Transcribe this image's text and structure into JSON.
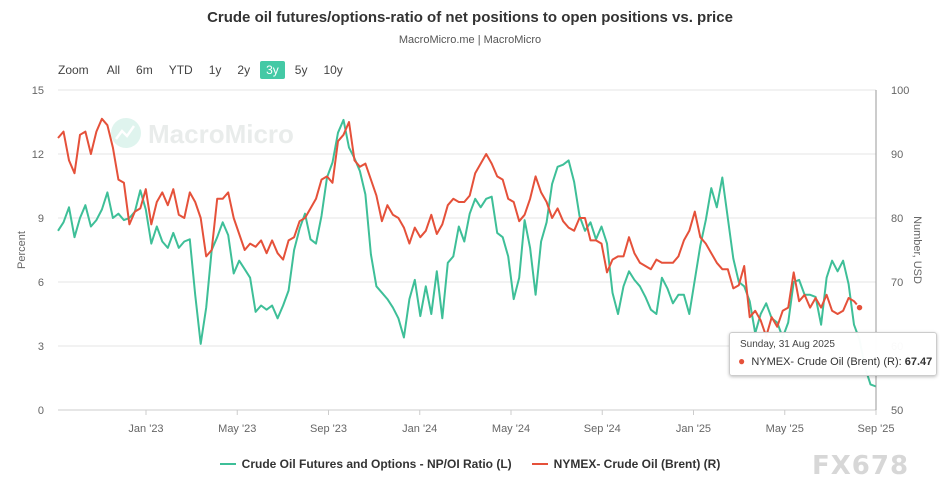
{
  "title": "Crude oil futures/options-ratio of net positions to open positions vs. price",
  "subtitle": "MacroMicro.me | MacroMicro",
  "range_selector": {
    "zoom_label": "Zoom",
    "options": [
      "All",
      "6m",
      "YTD",
      "1y",
      "2y",
      "3y",
      "5y",
      "10y"
    ],
    "active": "3y"
  },
  "watermark": "MacroMicro",
  "corner_watermark": "FX678",
  "tooltip": {
    "date": "Sunday, 31 Aug 2025",
    "series": "NYMEX- Crude Oil (Brent) (R):",
    "value": "67.47"
  },
  "colors": {
    "ratio": "#3ebf98",
    "brent": "#e5513a",
    "active_button": "#44c9a5"
  },
  "chart_data": {
    "type": "line",
    "x_start": "2022-09",
    "x_end": "2025-09",
    "x_ticks": [
      "Jan '23",
      "May '23",
      "Sep '23",
      "Jan '24",
      "May '24",
      "Sep '24",
      "Jan '25",
      "May '25",
      "Sep '25"
    ],
    "y_left": {
      "label": "Percent",
      "min": 0,
      "max": 15,
      "ticks": [
        0,
        3,
        6,
        9,
        12,
        15
      ]
    },
    "y_right": {
      "label": "Number, USD",
      "min": 50,
      "max": 100,
      "ticks": [
        50,
        60,
        70,
        80,
        90,
        100
      ]
    },
    "grid": true,
    "legend_position": "bottom",
    "series": [
      {
        "name": "Crude Oil Futures and Options - NP/OI Ratio (L)",
        "axis": "left",
        "values": [
          8.4,
          8.8,
          9.5,
          8.1,
          9.0,
          9.6,
          8.6,
          8.9,
          9.4,
          10.2,
          9.0,
          9.2,
          8.9,
          9.0,
          9.3,
          10.3,
          9.4,
          7.8,
          8.6,
          7.9,
          7.6,
          8.3,
          7.6,
          7.9,
          8.0,
          5.4,
          3.1,
          4.8,
          7.5,
          8.1,
          8.8,
          8.2,
          6.4,
          7.0,
          6.6,
          6.2,
          4.6,
          4.9,
          4.7,
          4.9,
          4.3,
          4.9,
          5.6,
          7.5,
          8.5,
          9.2,
          8.0,
          7.8,
          9.1,
          10.9,
          11.6,
          13.0,
          13.6,
          12.3,
          11.8,
          11.2,
          10.1,
          7.3,
          5.8,
          5.5,
          5.2,
          4.8,
          4.3,
          3.4,
          5.2,
          6.1,
          4.4,
          5.8,
          4.5,
          6.5,
          4.3,
          6.9,
          7.2,
          8.6,
          7.9,
          9.2,
          9.9,
          9.5,
          9.9,
          10.0,
          8.3,
          8.1,
          7.2,
          5.2,
          6.2,
          8.9,
          7.6,
          5.4,
          7.9,
          8.8,
          10.6,
          11.4,
          11.5,
          11.7,
          10.7,
          9.1,
          8.4,
          8.8,
          8.0,
          8.6,
          7.8,
          5.5,
          4.5,
          5.8,
          6.5,
          6.1,
          5.8,
          5.3,
          4.7,
          4.5,
          6.2,
          5.7,
          5.0,
          5.4,
          5.4,
          4.5,
          6.1,
          7.7,
          8.9,
          10.4,
          9.5,
          10.9,
          9.0,
          7.1,
          6.0,
          5.8,
          5.1,
          3.6,
          4.5,
          5.0,
          4.3,
          4.1,
          3.4,
          4.1,
          6.0,
          6.1,
          5.4,
          5.4,
          5.3,
          4.0,
          6.2,
          7.0,
          6.5,
          7.0,
          5.9,
          4.0,
          3.3,
          2.0,
          1.2,
          1.1
        ]
      },
      {
        "name": "NYMEX- Crude Oil (Brent) (R)",
        "axis": "right",
        "values": [
          92.5,
          93.5,
          89.0,
          87.0,
          93.0,
          93.5,
          90.0,
          93.5,
          95.5,
          94.5,
          91.0,
          86.0,
          85.5,
          79.0,
          81.0,
          81.5,
          84.5,
          79.0,
          82.5,
          84.0,
          82.0,
          84.5,
          80.5,
          80.0,
          84.0,
          82.5,
          80.0,
          74.0,
          75.0,
          83.0,
          83.0,
          84.0,
          80.0,
          77.5,
          75.0,
          76.0,
          75.5,
          76.5,
          74.5,
          76.5,
          74.5,
          73.5,
          76.5,
          77.0,
          79.5,
          80.0,
          81.5,
          83.0,
          86.0,
          86.5,
          85.5,
          92.0,
          93.0,
          95.0,
          89.0,
          88.0,
          88.5,
          86.0,
          83.5,
          79.5,
          82.0,
          80.5,
          80.0,
          78.5,
          76.0,
          78.5,
          77.0,
          78.0,
          80.5,
          77.5,
          79.0,
          82.0,
          83.0,
          82.5,
          82.5,
          83.5,
          87.0,
          88.5,
          90.0,
          88.5,
          86.5,
          86.0,
          83.0,
          82.5,
          79.5,
          80.5,
          83.0,
          86.5,
          84.0,
          82.5,
          80.0,
          81.5,
          79.5,
          78.5,
          78.0,
          80.0,
          80.0,
          76.5,
          76.5,
          76.0,
          71.5,
          73.5,
          74.0,
          74.0,
          77.0,
          74.5,
          73.0,
          72.5,
          72.0,
          73.5,
          73.0,
          73.0,
          73.0,
          74.0,
          76.5,
          78.0,
          81.0,
          77.0,
          76.0,
          74.5,
          73.0,
          72.0,
          72.0,
          69.0,
          69.5,
          72.5,
          64.5,
          65.5,
          64.0,
          61.5,
          64.5,
          63.0,
          65.5,
          66.0,
          71.5,
          67.0,
          68.0,
          66.0,
          67.5,
          66.0,
          68.0,
          65.5,
          65.0,
          65.5,
          67.5,
          67.0,
          66.0
        ]
      }
    ]
  }
}
